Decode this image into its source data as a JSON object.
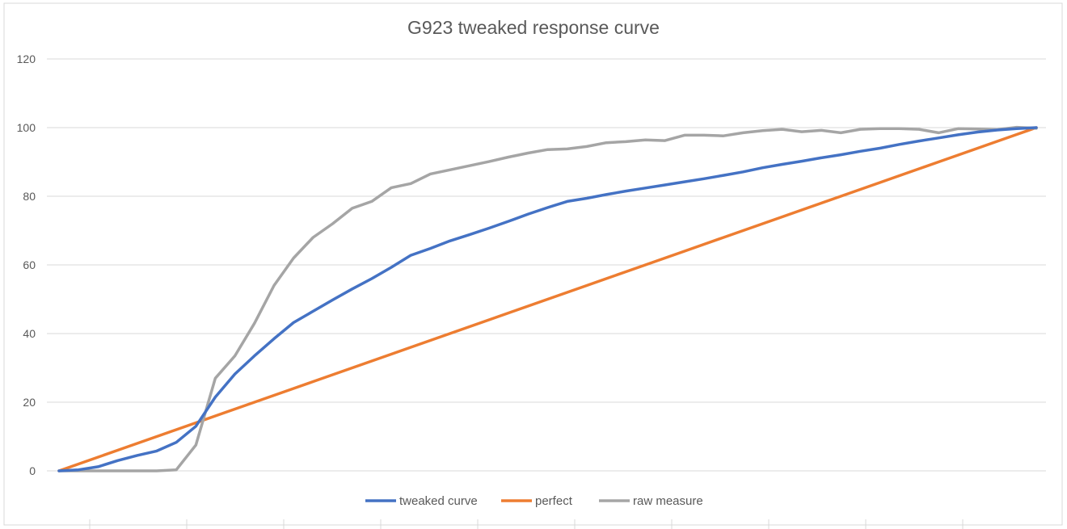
{
  "chart_data": {
    "type": "line",
    "title": "G923 tweaked response curve",
    "xlabel": "",
    "ylabel": "",
    "ylim": [
      -15,
      130
    ],
    "yticks": [
      0,
      20,
      40,
      60,
      80,
      100,
      120
    ],
    "grid": true,
    "legend_position": "bottom",
    "x": [
      0,
      1,
      2,
      3,
      4,
      5,
      6,
      7,
      8,
      9,
      10,
      11,
      12,
      13,
      14,
      15,
      16,
      17,
      18,
      19,
      20,
      21,
      22,
      23,
      24,
      25,
      26,
      27,
      28,
      29,
      30,
      31,
      32,
      33,
      34,
      35,
      36,
      37,
      38,
      39,
      40,
      41,
      42,
      43,
      44,
      45,
      46,
      47,
      48,
      49,
      50
    ],
    "series": [
      {
        "name": "tweaked curve",
        "color": "#4472C4",
        "values": [
          0,
          0.3,
          1.2,
          3.0,
          4.5,
          5.8,
          8.3,
          13.0,
          21.5,
          28.2,
          33.5,
          38.5,
          43.2,
          46.5,
          49.8,
          53.0,
          56.0,
          59.3,
          62.8,
          64.8,
          67.0,
          68.8,
          70.7,
          72.7,
          74.8,
          76.7,
          78.5,
          79.4,
          80.5,
          81.5,
          82.4,
          83.3,
          84.2,
          85.1,
          86.1,
          87.1,
          88.3,
          89.3,
          90.2,
          91.2,
          92.1,
          93.1,
          94.0,
          95.1,
          96.1,
          97.0,
          97.9,
          98.7,
          99.3,
          99.7,
          100
        ]
      },
      {
        "name": "perfect",
        "color": "#ED7D31",
        "values": [
          0,
          2,
          4,
          6,
          8,
          10,
          12,
          14,
          16,
          18,
          20,
          22,
          24,
          26,
          28,
          30,
          32,
          34,
          36,
          38,
          40,
          42,
          44,
          46,
          48,
          50,
          52,
          54,
          56,
          58,
          60,
          62,
          64,
          66,
          68,
          70,
          72,
          74,
          76,
          78,
          80,
          82,
          84,
          86,
          88,
          90,
          92,
          94,
          96,
          98,
          100
        ]
      },
      {
        "name": "raw measure",
        "color": "#A5A5A5",
        "values": [
          0,
          0,
          0,
          0,
          0,
          0,
          0.3,
          7.5,
          27,
          33.5,
          43,
          54,
          62,
          68,
          72,
          76.5,
          78.5,
          82.5,
          83.7,
          86.5,
          87.7,
          88.9,
          90.1,
          91.4,
          92.6,
          93.6,
          93.8,
          94.5,
          95.6,
          95.9,
          96.4,
          96.2,
          97.8,
          97.8,
          97.6,
          98.5,
          99.1,
          99.5,
          98.8,
          99.2,
          98.5,
          99.5,
          99.7,
          99.7,
          99.5,
          98.5,
          99.7,
          99.6,
          99.4,
          100.1,
          99.8
        ]
      }
    ]
  }
}
